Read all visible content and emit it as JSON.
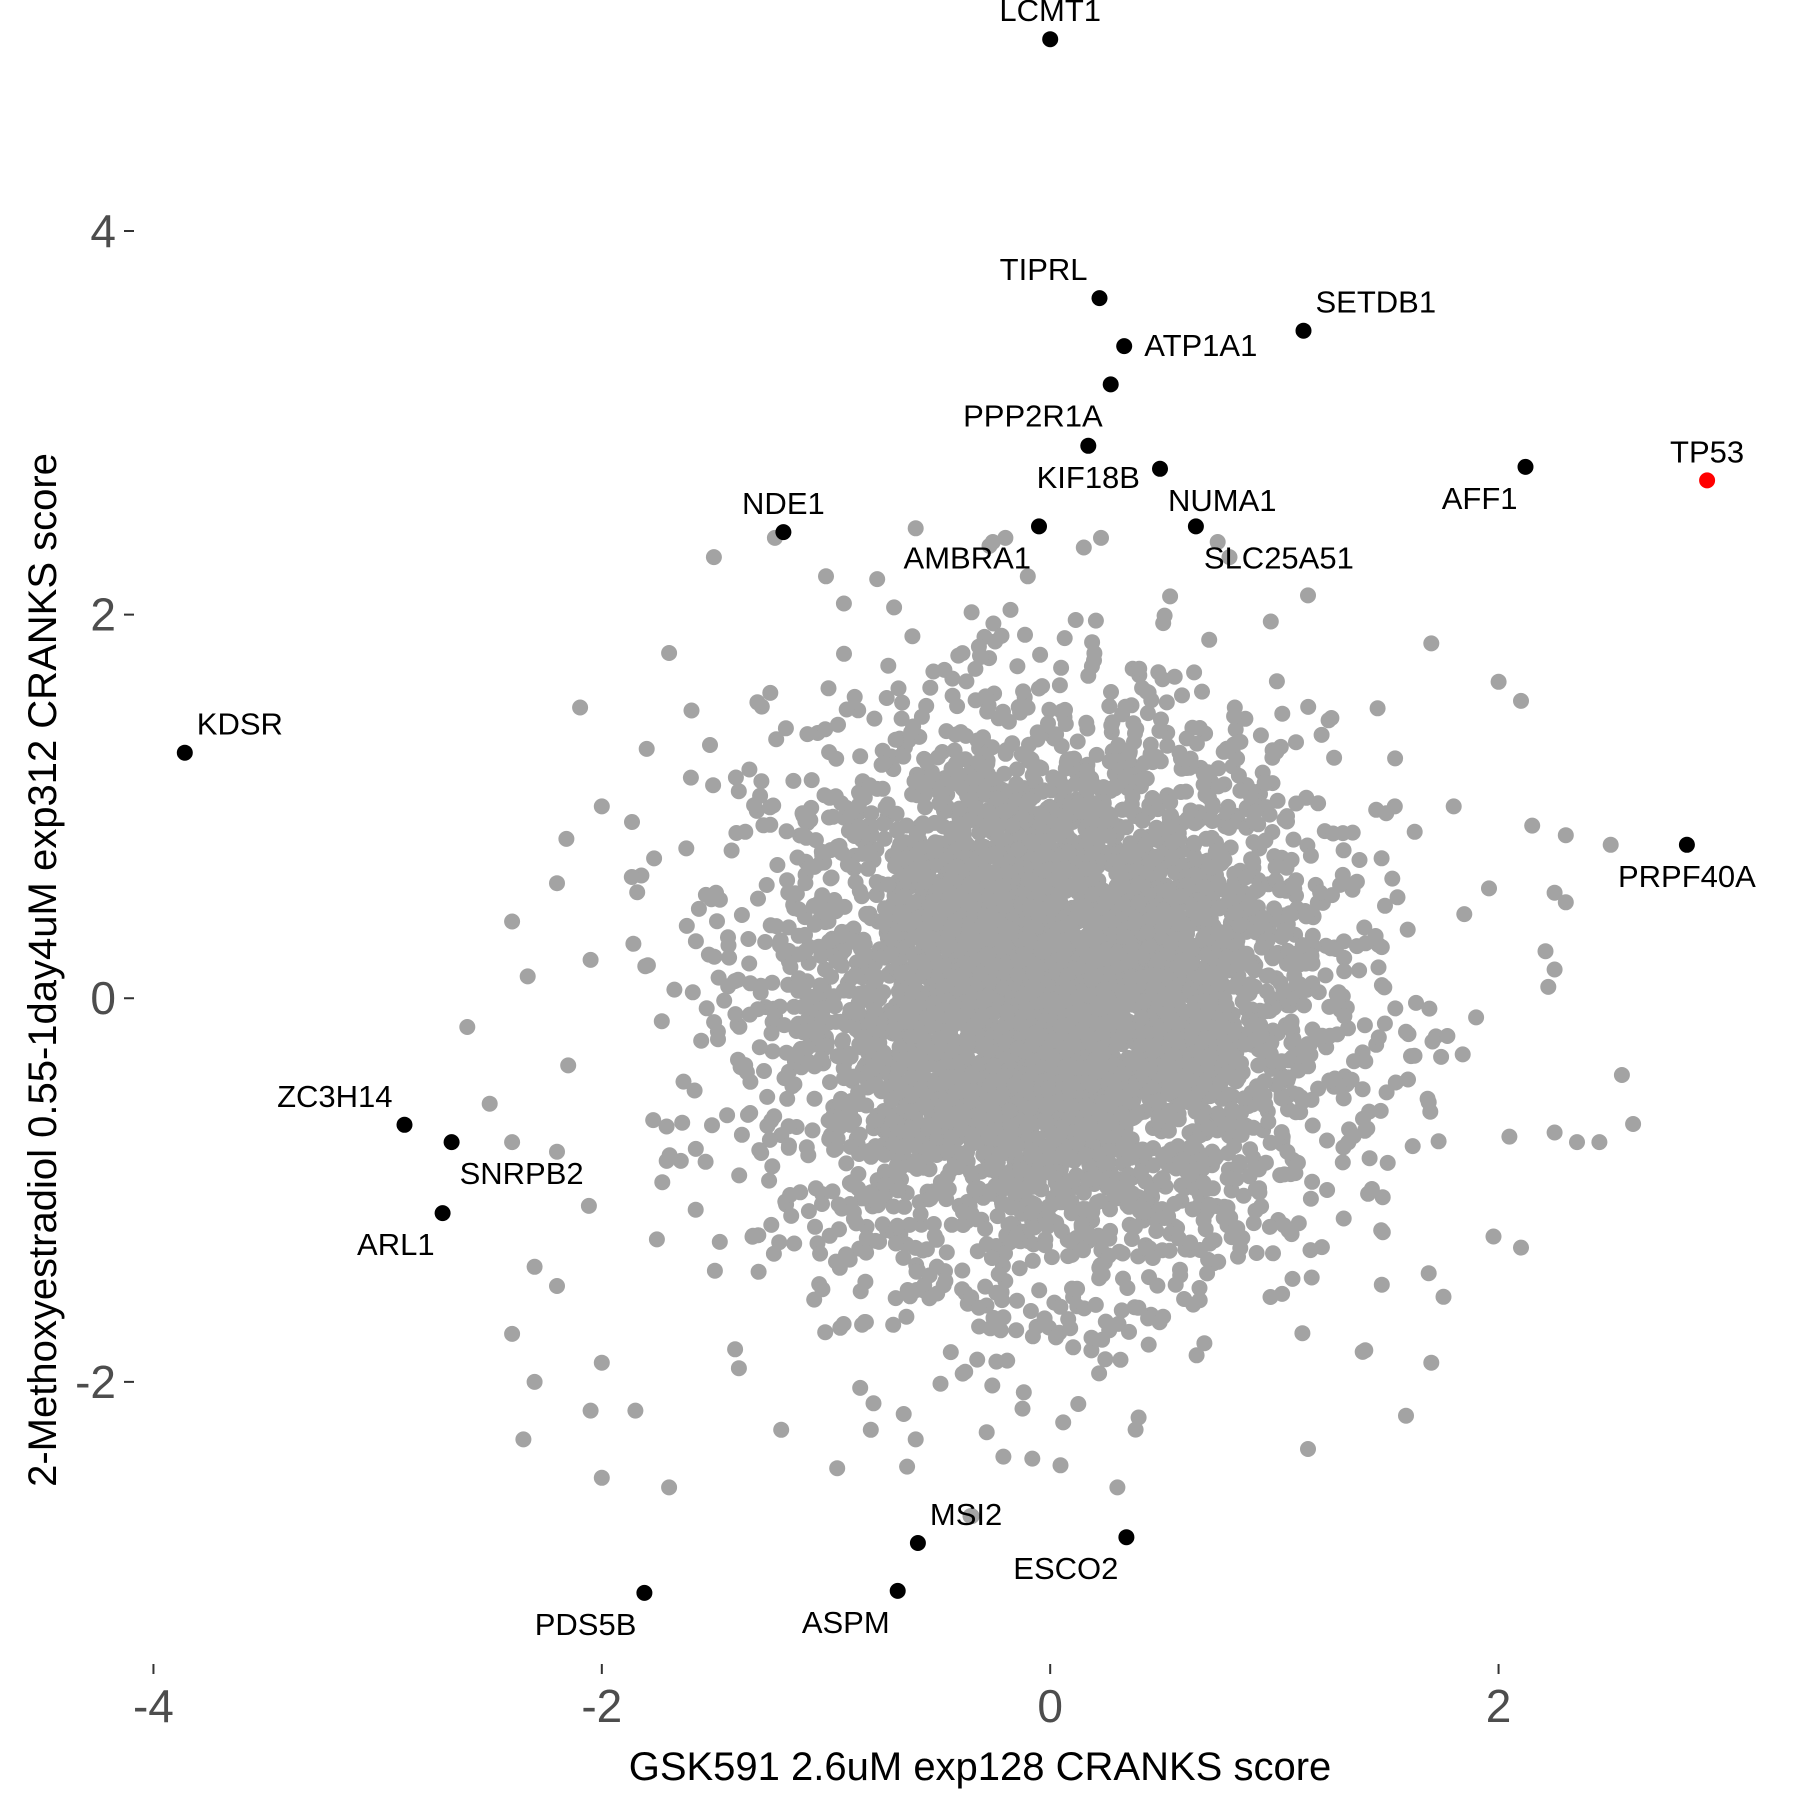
{
  "chart_data": {
    "type": "scatter",
    "title": "",
    "xlabel": "GSK591 2.6uM exp128 CRANKS score",
    "ylabel": "2-Methoxyestradiol 0.55-1day4uM exp312 CRANKS score",
    "xlim": [
      -4.06,
      3.3
    ],
    "ylim": [
      -3.45,
      5.1
    ],
    "x_ticks": [
      -4,
      -2,
      0,
      2
    ],
    "y_ticks": [
      -2,
      0,
      2,
      4
    ],
    "x_tick_labels": [
      "-4",
      "-2",
      "0",
      "2"
    ],
    "y_tick_labels": [
      "-2",
      "0",
      "2",
      "4"
    ],
    "grid": false,
    "colors": {
      "background_points": "#a3a3a3",
      "highlight_points": "#000000",
      "focus_point": "#ff0000"
    },
    "background_points": {
      "description_count": 5000,
      "center": [
        0.0,
        0.0
      ],
      "sd": [
        0.62,
        0.72
      ],
      "outliers": [
        [
          -1.5,
          2.3
        ],
        [
          -1.7,
          1.8
        ],
        [
          -2.2,
          0.6
        ],
        [
          -2.4,
          0.4
        ],
        [
          -2.6,
          -0.15
        ],
        [
          -2.5,
          -0.55
        ],
        [
          -2.4,
          -0.75
        ],
        [
          -2.2,
          -0.8
        ],
        [
          -2.3,
          -1.4
        ],
        [
          -2.4,
          -1.75
        ],
        [
          -2.0,
          -1.9
        ],
        [
          -2.3,
          -2.0
        ],
        [
          -2.05,
          -2.15
        ],
        [
          -2.35,
          -2.3
        ],
        [
          -2.0,
          -2.5
        ],
        [
          -1.7,
          -2.55
        ],
        [
          -1.85,
          -2.15
        ],
        [
          -2.2,
          -1.5
        ],
        [
          -1.8,
          1.3
        ],
        [
          -2.0,
          1.0
        ],
        [
          -2.15,
          -0.35
        ],
        [
          -2.05,
          0.2
        ],
        [
          -1.0,
          2.2
        ],
        [
          -0.6,
          2.45
        ],
        [
          -0.2,
          2.4
        ],
        [
          -0.1,
          2.2
        ],
        [
          0.15,
          2.35
        ],
        [
          0.8,
          2.3
        ],
        [
          1.15,
          2.1
        ],
        [
          1.7,
          1.85
        ],
        [
          2.0,
          1.65
        ],
        [
          2.1,
          1.55
        ],
        [
          2.15,
          0.9
        ],
        [
          2.25,
          0.55
        ],
        [
          2.3,
          0.5
        ],
        [
          2.3,
          0.85
        ],
        [
          2.5,
          0.8
        ],
        [
          2.25,
          0.15
        ],
        [
          2.55,
          -0.4
        ],
        [
          2.25,
          -0.7
        ],
        [
          2.35,
          -0.75
        ],
        [
          2.45,
          -0.75
        ],
        [
          2.1,
          -1.3
        ],
        [
          1.7,
          -1.9
        ],
        [
          1.15,
          -2.35
        ],
        [
          0.3,
          -2.55
        ],
        [
          -0.08,
          -2.4
        ],
        [
          -0.35,
          -2.7
        ],
        [
          -0.6,
          -2.3
        ],
        [
          -0.8,
          -2.25
        ],
        [
          -0.95,
          -2.45
        ],
        [
          -1.2,
          -2.25
        ],
        [
          1.8,
          1.0
        ],
        [
          1.9,
          -0.1
        ],
        [
          -1.6,
          1.5
        ]
      ]
    },
    "highlighted_genes": [
      {
        "name": "LCMT1",
        "x": 0.0,
        "y": 5.0,
        "color": "#000000",
        "label_pos": "above"
      },
      {
        "name": "TIPRL",
        "x": 0.22,
        "y": 3.65,
        "color": "#000000",
        "label_pos": "above-left"
      },
      {
        "name": "SETDB1",
        "x": 1.13,
        "y": 3.48,
        "color": "#000000",
        "label_pos": "above-right"
      },
      {
        "name": "ATP1A1",
        "x": 0.33,
        "y": 3.4,
        "color": "#000000",
        "label_pos": "right"
      },
      {
        "name": "PPP2R1A",
        "x": 0.27,
        "y": 3.2,
        "color": "#000000",
        "label_pos": "below-left"
      },
      {
        "name": "KIF18B",
        "x": 0.17,
        "y": 2.88,
        "color": "#000000",
        "label_pos": "below"
      },
      {
        "name": "NUMA1",
        "x": 0.49,
        "y": 2.76,
        "color": "#000000",
        "label_pos": "below-right"
      },
      {
        "name": "AFF1",
        "x": 2.12,
        "y": 2.77,
        "color": "#000000",
        "label_pos": "below-left"
      },
      {
        "name": "TP53",
        "x": 2.93,
        "y": 2.7,
        "color": "#ff0000",
        "label_pos": "above"
      },
      {
        "name": "NDE1",
        "x": -1.19,
        "y": 2.43,
        "color": "#000000",
        "label_pos": "above"
      },
      {
        "name": "AMBRA1",
        "x": -0.05,
        "y": 2.46,
        "color": "#000000",
        "label_pos": "below-left"
      },
      {
        "name": "SLC25A51",
        "x": 0.65,
        "y": 2.46,
        "color": "#000000",
        "label_pos": "below-right"
      },
      {
        "name": "KDSR",
        "x": -3.86,
        "y": 1.28,
        "color": "#000000",
        "label_pos": "above-right"
      },
      {
        "name": "PRPF40A",
        "x": 2.84,
        "y": 0.8,
        "color": "#000000",
        "label_pos": "below"
      },
      {
        "name": "ZC3H14",
        "x": -2.88,
        "y": -0.66,
        "color": "#000000",
        "label_pos": "above-left"
      },
      {
        "name": "SNRPB2",
        "x": -2.67,
        "y": -0.75,
        "color": "#000000",
        "label_pos": "below-right"
      },
      {
        "name": "ARL1",
        "x": -2.71,
        "y": -1.12,
        "color": "#000000",
        "label_pos": "below-left"
      },
      {
        "name": "MSI2",
        "x": -0.59,
        "y": -2.84,
        "color": "#000000",
        "label_pos": "above-right"
      },
      {
        "name": "ESCO2",
        "x": 0.34,
        "y": -2.81,
        "color": "#000000",
        "label_pos": "below-left"
      },
      {
        "name": "PDS5B",
        "x": -1.81,
        "y": -3.1,
        "color": "#000000",
        "label_pos": "below-left"
      },
      {
        "name": "ASPM",
        "x": -0.68,
        "y": -3.09,
        "color": "#000000",
        "label_pos": "below-left"
      }
    ]
  }
}
